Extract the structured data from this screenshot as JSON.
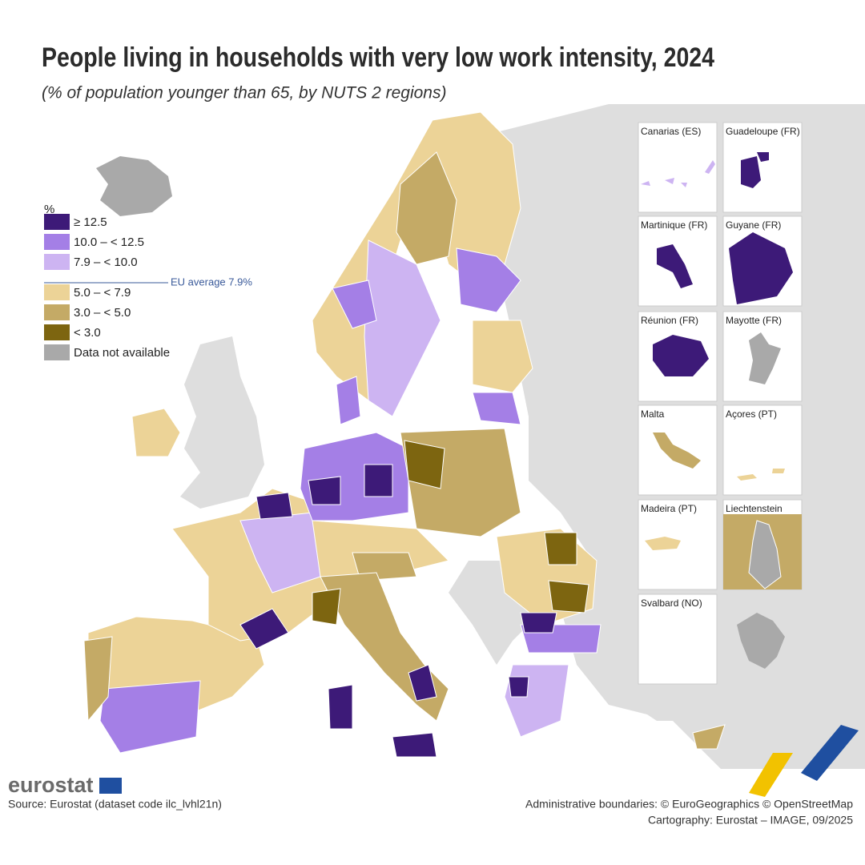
{
  "header": {
    "title": "People living in households with very low work intensity, 2024",
    "subtitle": "(% of population younger than 65, by NUTS 2 regions)"
  },
  "legend": {
    "unit": "%",
    "items": [
      {
        "label": "≥ 12.5",
        "color": "#3d1a78"
      },
      {
        "label": "10.0 – < 12.5",
        "color": "#a47fe6"
      },
      {
        "label": "7.9 – < 10.0",
        "color": "#cdb4f2"
      },
      {
        "label": "5.0 – < 7.9",
        "color": "#ecd397"
      },
      {
        "label": "3.0 – < 5.0",
        "color": "#c4aa66"
      },
      {
        "label": "< 3.0",
        "color": "#7d6510"
      },
      {
        "label": "Data not available",
        "color": "#a9a9a9"
      }
    ],
    "eu_average": "EU average 7.9%"
  },
  "insets": [
    "Canarias (ES)",
    "Guadeloupe (FR)",
    "Martinique (FR)",
    "Guyane (FR)",
    "Réunion (FR)",
    "Mayotte (FR)",
    "Malta",
    "Açores (PT)",
    "Madeira (PT)",
    "Liechtenstein",
    "Svalbard (NO)"
  ],
  "footer": {
    "logo": "eurostat",
    "source": "Source: Eurostat (dataset code ilc_lvhl21n)",
    "boundaries": "Administrative boundaries: © EuroGeographics © OpenStreetMap",
    "cartography": "Cartography: Eurostat – IMAGE, 09/2025"
  }
}
